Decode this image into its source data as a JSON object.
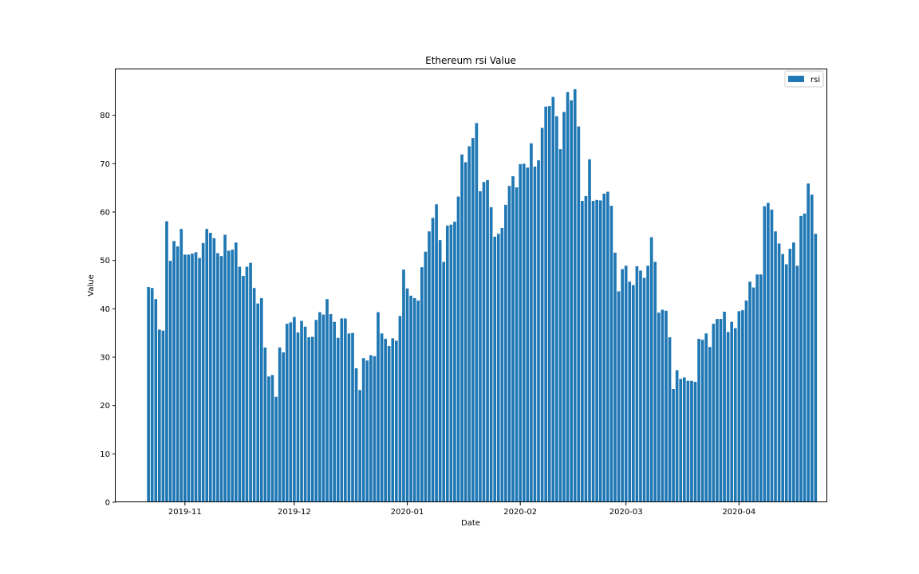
{
  "colors": {
    "bar": "#1f77b4",
    "axis": "#000000",
    "legend_border": "#cccccc"
  },
  "chart_data": {
    "type": "bar",
    "title": "Ethereum rsi Value",
    "xlabel": "Date",
    "ylabel": "Value",
    "ylim": [
      0,
      89.5
    ],
    "grid": false,
    "legend_position": "top-right",
    "series": [
      {
        "name": "rsi",
        "color": "#1f77b4"
      }
    ],
    "x_range": [
      "2019-10-13",
      "2020-04-25"
    ],
    "x_ticks": [
      {
        "date": "2019-11-01",
        "label": "2019-11"
      },
      {
        "date": "2019-12-01",
        "label": "2019-12"
      },
      {
        "date": "2020-01-01",
        "label": "2020-01"
      },
      {
        "date": "2020-02-01",
        "label": "2020-02"
      },
      {
        "date": "2020-03-01",
        "label": "2020-03"
      },
      {
        "date": "2020-04-01",
        "label": "2020-04"
      }
    ],
    "y_ticks": [
      0,
      10,
      20,
      30,
      40,
      50,
      60,
      70,
      80
    ],
    "start_date": "2019-10-22",
    "values": [
      44.5,
      44.3,
      42.0,
      35.7,
      35.5,
      58.1,
      49.9,
      54.0,
      52.9,
      56.5,
      51.2,
      51.2,
      51.4,
      51.7,
      50.5,
      53.6,
      56.5,
      55.7,
      54.6,
      51.5,
      50.9,
      55.3,
      52.0,
      52.2,
      53.7,
      48.7,
      46.8,
      48.7,
      49.5,
      44.3,
      41.1,
      42.2,
      32.0,
      26.0,
      26.3,
      21.8,
      32.0,
      31.0,
      36.9,
      37.2,
      38.3,
      35.1,
      37.5,
      36.3,
      34.1,
      34.2,
      37.7,
      39.3,
      38.8,
      42.0,
      38.9,
      37.3,
      34.0,
      38.0,
      38.0,
      34.9,
      35.0,
      27.7,
      23.2,
      29.8,
      29.3,
      30.4,
      30.2,
      39.3,
      34.9,
      33.8,
      32.3,
      33.9,
      33.4,
      38.5,
      48.1,
      44.2,
      42.7,
      42.2,
      41.7,
      48.6,
      51.8,
      56.0,
      58.8,
      61.6,
      54.2,
      49.7,
      57.2,
      57.4,
      58.0,
      63.2,
      71.9,
      70.3,
      73.6,
      75.3,
      78.4,
      64.3,
      66.2,
      66.6,
      61.0,
      54.9,
      55.5,
      56.7,
      61.5,
      65.4,
      67.4,
      65.1,
      69.9,
      70.0,
      69.2,
      74.2,
      69.4,
      70.7,
      77.4,
      81.8,
      81.9,
      83.8,
      79.8,
      73.0,
      80.7,
      84.8,
      83.1,
      85.4,
      77.7,
      62.3,
      63.3,
      70.9,
      62.3,
      62.5,
      62.4,
      63.8,
      64.2,
      61.3,
      51.6,
      43.6,
      48.2,
      48.9,
      45.6,
      44.9,
      48.8,
      47.9,
      46.4,
      48.9,
      54.8,
      49.7,
      39.2,
      39.8,
      39.6,
      34.1,
      23.4,
      27.3,
      25.5,
      25.8,
      25.1,
      25.1,
      24.9,
      33.8,
      33.6,
      34.9,
      32.1,
      36.9,
      37.9,
      37.9,
      39.4,
      35.2,
      37.3,
      36.0,
      39.5,
      39.7,
      41.7,
      45.6,
      44.4,
      47.1,
      47.1,
      61.2,
      61.9,
      60.5,
      56.0,
      53.5,
      51.3,
      49.2,
      52.4,
      53.7,
      48.9,
      59.2,
      59.7,
      65.9,
      63.6,
      55.5
    ]
  }
}
